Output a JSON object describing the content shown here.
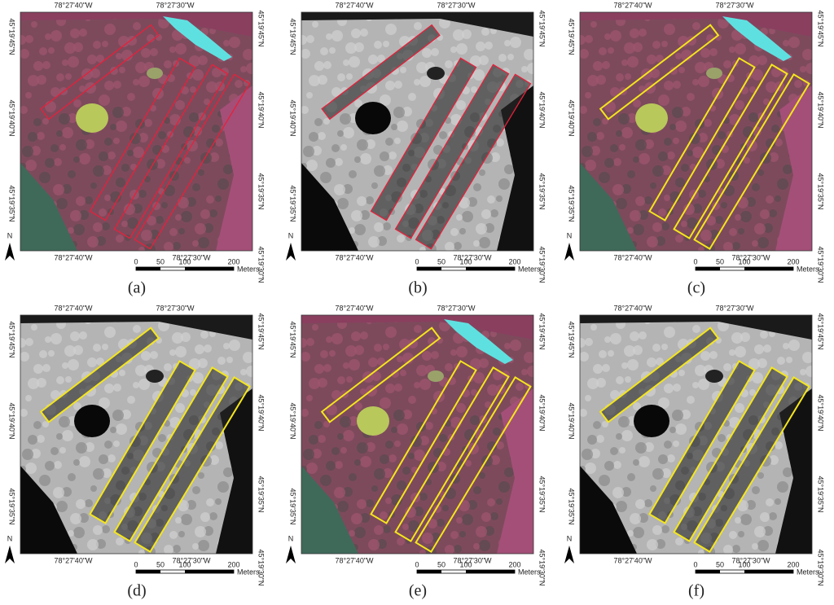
{
  "labels": {
    "top": [
      "78°27'40\"W",
      "78°27'30\"W"
    ],
    "bottom": [
      "78°27'40\"W",
      "78°27'30\"W"
    ],
    "left": [
      "45°19'45\"N",
      "45°19'40\"N",
      "45°19'35\"N"
    ],
    "right": [
      "45°19'45\"N",
      "45°19'40\"N",
      "45°19'35\"N",
      "45°19'30\"N"
    ],
    "scale": [
      "0",
      "50",
      "100",
      "200",
      "Meters"
    ],
    "north": "N"
  },
  "panels": [
    {
      "caption": "(a)",
      "base": "color",
      "outline": "#e8203a"
    },
    {
      "caption": "(b)",
      "base": "gray",
      "outline": "#e8203a"
    },
    {
      "caption": "(c)",
      "base": "color",
      "outline": "#f5e61a"
    },
    {
      "caption": "(d)",
      "base": "gray",
      "outline": "#f5e61a"
    },
    {
      "caption": "(e)",
      "base": "color",
      "outline": "#f5e61a"
    },
    {
      "caption": "(f)",
      "base": "gray",
      "outline": "#f5e61a"
    }
  ]
}
